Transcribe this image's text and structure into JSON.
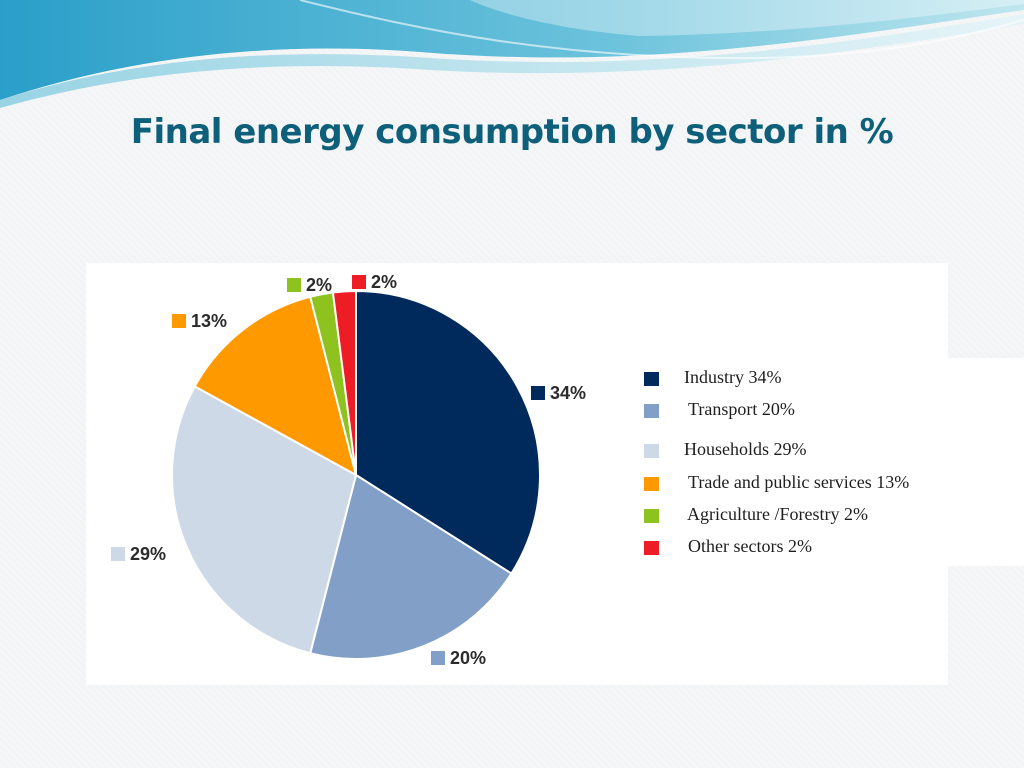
{
  "slide": {
    "title": "Final energy consumption by sector in %"
  },
  "chart_data": {
    "type": "pie",
    "start_angle_deg": 0,
    "direction": "clockwise",
    "categories": [
      "Industry",
      "Transport",
      "Households",
      "Trade and public services",
      "Agriculture /Forestry",
      "Other sectors"
    ],
    "values": [
      34,
      20,
      29,
      13,
      2,
      2
    ],
    "data_labels": [
      "34%",
      "20%",
      "29%",
      "13%",
      "2%",
      "2%"
    ],
    "colors": [
      "#002a5c",
      "#819fc7",
      "#ced9e7",
      "#ff9900",
      "#8dc21f",
      "#ee1c25"
    ],
    "legend": [
      {
        "label": "Industry 34%",
        "color": "#002a5c"
      },
      {
        "label": "Transport 20%",
        "color": "#819fc7"
      },
      {
        "label": "Households 29%",
        "color": "#ced9e7"
      },
      {
        "label": "Trade and public services 13%",
        "color": "#ff9900"
      },
      {
        "label": "Agriculture /Forestry 2%",
        "color": "#8dc21f"
      },
      {
        "label": "Other sectors 2%",
        "color": "#ee1c25"
      }
    ],
    "legend_position": "right"
  }
}
